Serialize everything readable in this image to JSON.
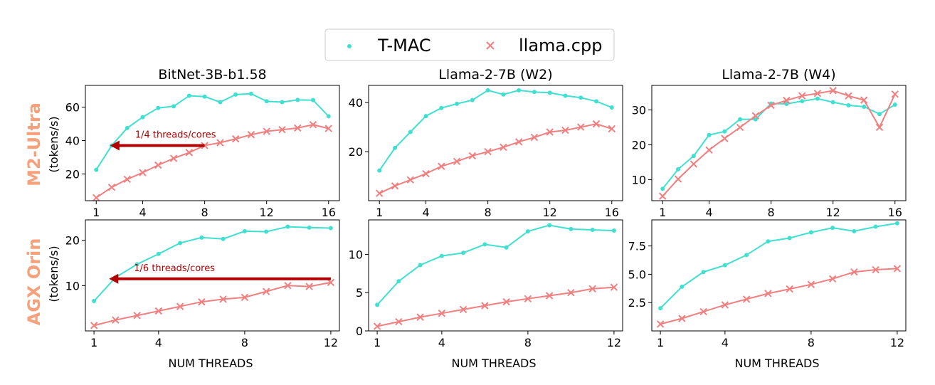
{
  "legend": {
    "placement": "top-center",
    "entries": [
      {
        "label": "T-MAC",
        "marker": "dot",
        "color": "#40e0d0"
      },
      {
        "label": "llama.cpp",
        "marker": "x",
        "color": "#f08080"
      }
    ]
  },
  "row_labels": [
    {
      "title": "M2-Ultra",
      "unit": "(tokens/s)"
    },
    {
      "title": "AGX Orin",
      "unit": "(tokens/s)"
    }
  ],
  "xlabel": "NUM THREADS",
  "annotations": [
    {
      "text": "1/4 threads/cores",
      "color": "#b00000"
    },
    {
      "text": "1/6 threads/cores",
      "color": "#b00000"
    }
  ],
  "chart_data": [
    {
      "type": "line",
      "title": "BitNet-3B-b1.58",
      "xlim": [
        0.3,
        16.7
      ],
      "ylim": [
        4,
        73
      ],
      "xticks": [
        1,
        4,
        8,
        12,
        16
      ],
      "yticks": [
        20,
        40,
        60
      ],
      "series": [
        {
          "name": "T-MAC",
          "x": [
            1,
            2,
            3,
            4,
            5,
            6,
            7,
            8,
            9,
            10,
            11,
            12,
            13,
            14,
            15,
            16
          ],
          "y": [
            22.5,
            37,
            47.5,
            54,
            59.5,
            60.5,
            66.8,
            66.3,
            63,
            67.5,
            68,
            63.5,
            63,
            64.3,
            64.2,
            54.5
          ]
        },
        {
          "name": "llama.cpp",
          "x": [
            1,
            2,
            3,
            4,
            5,
            6,
            7,
            8,
            9,
            10,
            11,
            12,
            13,
            14,
            15,
            16
          ],
          "y": [
            5.8,
            12,
            16.8,
            20.8,
            25.3,
            29.3,
            32.8,
            37,
            38.7,
            41,
            43.5,
            45.5,
            46.5,
            47.5,
            49.5,
            47.2
          ]
        }
      ],
      "arrow": {
        "from_x": 8,
        "to_x": 1.9,
        "y": 37,
        "label": "1/4 threads/cores"
      }
    },
    {
      "type": "line",
      "title": "Llama-2-7B (W2)",
      "xlim": [
        0.3,
        16.7
      ],
      "ylim": [
        0,
        47
      ],
      "xticks": [
        1,
        4,
        8,
        12,
        16
      ],
      "yticks": [
        20,
        40
      ],
      "series": [
        {
          "name": "T-MAC",
          "x": [
            1,
            2,
            3,
            4,
            5,
            6,
            7,
            8,
            9,
            10,
            11,
            12,
            13,
            14,
            15,
            16
          ],
          "y": [
            12.3,
            21.5,
            28,
            34.5,
            37.8,
            39.5,
            41,
            45,
            43.3,
            45,
            44.3,
            44,
            42.8,
            42,
            40.5,
            38
          ]
        },
        {
          "name": "llama.cpp",
          "x": [
            1,
            2,
            3,
            4,
            5,
            6,
            7,
            8,
            9,
            10,
            11,
            12,
            13,
            14,
            15,
            16
          ],
          "y": [
            3,
            6,
            8.5,
            11,
            14,
            16,
            18.3,
            20,
            21.8,
            24,
            25.8,
            28,
            28.7,
            30,
            31.3,
            29.3
          ]
        }
      ]
    },
    {
      "type": "line",
      "title": "Llama-2-7B (W4)",
      "xlim": [
        0.3,
        16.7
      ],
      "ylim": [
        4,
        37
      ],
      "xticks": [
        1,
        4,
        8,
        12,
        16
      ],
      "yticks": [
        10,
        20,
        30
      ],
      "series": [
        {
          "name": "T-MAC",
          "x": [
            1,
            2,
            3,
            4,
            5,
            6,
            7,
            8,
            9,
            10,
            11,
            12,
            13,
            14,
            15,
            16
          ],
          "y": [
            7.4,
            13,
            16.8,
            22.8,
            23.8,
            27.3,
            27.3,
            31.8,
            31.7,
            32.5,
            33.2,
            32.2,
            31.3,
            30.9,
            28.8,
            31.5
          ]
        },
        {
          "name": "llama.cpp",
          "x": [
            1,
            2,
            3,
            4,
            5,
            6,
            7,
            8,
            9,
            10,
            11,
            12,
            13,
            14,
            15,
            16
          ],
          "y": [
            5.3,
            10.2,
            14.5,
            18.5,
            21.8,
            25,
            28.3,
            31.3,
            32.7,
            34,
            34.7,
            35.5,
            34,
            32.8,
            25,
            34.5
          ]
        }
      ]
    },
    {
      "type": "line",
      "title": "",
      "xlim": [
        0.6,
        12.4
      ],
      "ylim": [
        0,
        24.5
      ],
      "xticks": [
        1,
        4,
        8,
        12
      ],
      "yticks": [
        10,
        20
      ],
      "series": [
        {
          "name": "T-MAC",
          "x": [
            1,
            2,
            3,
            4,
            5,
            6,
            7,
            8,
            9,
            10,
            11,
            12
          ],
          "y": [
            6.6,
            11.8,
            14.7,
            17,
            19.4,
            20.6,
            20.3,
            22,
            21.9,
            23,
            22.8,
            22.7
          ]
        },
        {
          "name": "llama.cpp",
          "x": [
            1,
            2,
            3,
            4,
            5,
            6,
            7,
            8,
            9,
            10,
            11,
            12
          ],
          "y": [
            1.2,
            2.4,
            3.4,
            4.4,
            5.4,
            6.4,
            7,
            7.4,
            8.7,
            10,
            9.8,
            10.7
          ]
        }
      ],
      "arrow": {
        "from_x": 12,
        "to_x": 1.7,
        "y": 11.5,
        "label": "1/6 threads/cores"
      }
    },
    {
      "type": "line",
      "title": "",
      "xlim": [
        0.6,
        12.4
      ],
      "ylim": [
        0,
        14.5
      ],
      "xticks": [
        1,
        4,
        8,
        12
      ],
      "yticks": [
        0,
        5,
        10
      ],
      "series": [
        {
          "name": "T-MAC",
          "x": [
            1,
            2,
            3,
            4,
            5,
            6,
            7,
            8,
            9,
            10,
            11,
            12
          ],
          "y": [
            3.4,
            6.5,
            8.6,
            9.8,
            10.2,
            11.3,
            10.9,
            13,
            13.8,
            13.3,
            13.2,
            13.1
          ]
        },
        {
          "name": "llama.cpp",
          "x": [
            1,
            2,
            3,
            4,
            5,
            6,
            7,
            8,
            9,
            10,
            11,
            12
          ],
          "y": [
            0.6,
            1.2,
            1.8,
            2.3,
            2.8,
            3.3,
            3.8,
            4.2,
            4.6,
            5,
            5.5,
            5.7
          ]
        }
      ]
    },
    {
      "type": "line",
      "title": "",
      "xlim": [
        0.6,
        12.4
      ],
      "ylim": [
        0,
        9.8
      ],
      "xticks": [
        1,
        4,
        8,
        12
      ],
      "yticks": [
        2.5,
        5.0,
        7.5
      ],
      "series": [
        {
          "name": "T-MAC",
          "x": [
            1,
            2,
            3,
            4,
            5,
            6,
            7,
            8,
            9,
            10,
            11,
            12
          ],
          "y": [
            2,
            3.9,
            5.2,
            5.8,
            6.7,
            7.9,
            8.2,
            8.7,
            9.1,
            8.8,
            9.2,
            9.5
          ]
        },
        {
          "name": "llama.cpp",
          "x": [
            1,
            2,
            3,
            4,
            5,
            6,
            7,
            8,
            9,
            10,
            11,
            12
          ],
          "y": [
            0.6,
            1.1,
            1.7,
            2.3,
            2.8,
            3.3,
            3.7,
            4.1,
            4.6,
            5.2,
            5.4,
            5.5
          ]
        }
      ]
    }
  ]
}
